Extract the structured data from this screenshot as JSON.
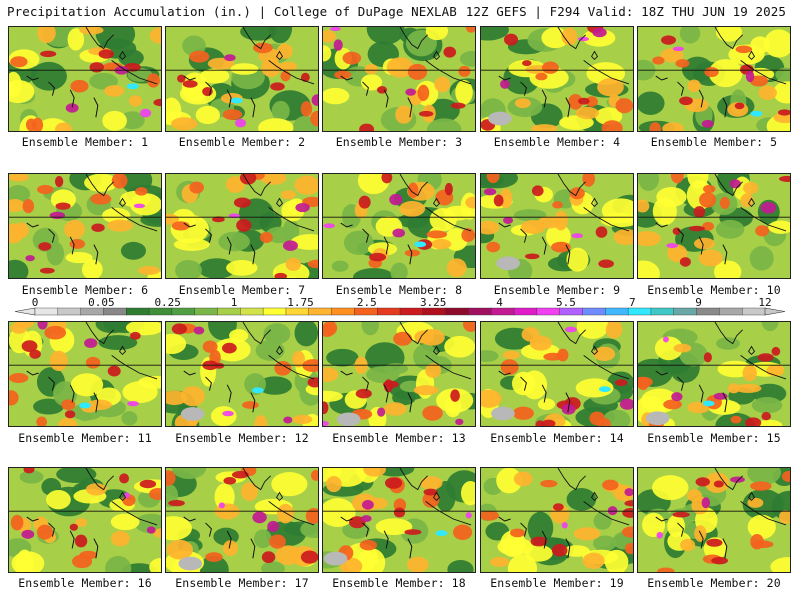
{
  "header": {
    "title": "Precipitation Accumulation (in.) | College of DuPage NEXLAB",
    "run_info": "12Z GEFS | F294 Valid: 18Z THU JUN 19 2025"
  },
  "colorbar": {
    "tick_labels": [
      "0",
      "0.05",
      "0.25",
      "1",
      "1.75",
      "2.5",
      "3.25",
      "4",
      "5.5",
      "7",
      "9",
      "12"
    ],
    "colors": [
      "#e6e6e6",
      "#c8c8c8",
      "#a8a8a8",
      "#888888",
      "#2e7d32",
      "#3f8f3a",
      "#4f9f42",
      "#7ab648",
      "#a8cf48",
      "#d2e34a",
      "#ffff33",
      "#ffd633",
      "#ffb32e",
      "#ff8f1f",
      "#f4621e",
      "#e53a1e",
      "#cc1a1e",
      "#b0101e",
      "#8e0a2a",
      "#a0105e",
      "#c21a92",
      "#e01cc8",
      "#f040f0",
      "#b060ff",
      "#6f8cff",
      "#40b8ff",
      "#30e8ff",
      "#40c8c8",
      "#6aa8a8",
      "#8a8a8a",
      "#a8a8a8",
      "#c8c8c8"
    ]
  },
  "members": [
    {
      "label": "Ensemble Member: 1"
    },
    {
      "label": "Ensemble Member: 2"
    },
    {
      "label": "Ensemble Member: 3"
    },
    {
      "label": "Ensemble Member: 4"
    },
    {
      "label": "Ensemble Member: 5"
    },
    {
      "label": "Ensemble Member: 6"
    },
    {
      "label": "Ensemble Member: 7"
    },
    {
      "label": "Ensemble Member: 8"
    },
    {
      "label": "Ensemble Member: 9"
    },
    {
      "label": "Ensemble Member: 10"
    },
    {
      "label": "Ensemble Member: 11"
    },
    {
      "label": "Ensemble Member: 12"
    },
    {
      "label": "Ensemble Member: 13"
    },
    {
      "label": "Ensemble Member: 14"
    },
    {
      "label": "Ensemble Member: 15"
    },
    {
      "label": "Ensemble Member: 16"
    },
    {
      "label": "Ensemble Member: 17"
    },
    {
      "label": "Ensemble Member: 18"
    },
    {
      "label": "Ensemble Member: 19"
    },
    {
      "label": "Ensemble Member: 20"
    }
  ],
  "map_colors": {
    "trace": "#9a9a9a",
    "light": "#2e7d32",
    "moderate": "#ffff33",
    "heavy": "#e53a1e",
    "very_heavy": "#c21a92",
    "extreme": "#30e8ff"
  }
}
